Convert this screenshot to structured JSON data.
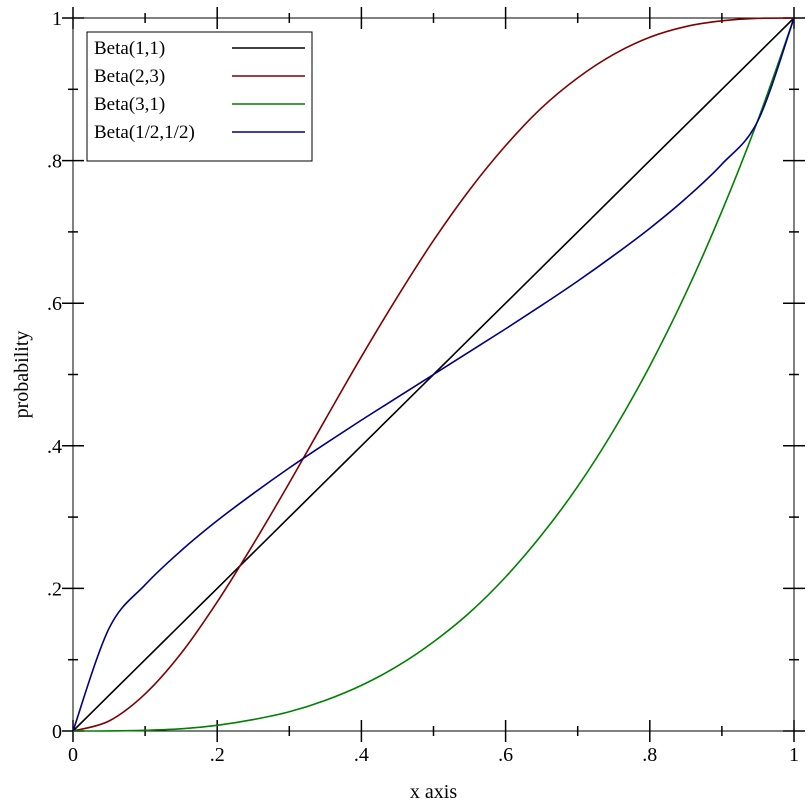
{
  "chart_data": {
    "type": "line",
    "title": "",
    "xlabel": "x axis",
    "ylabel": "probability",
    "xlim": [
      0,
      1
    ],
    "ylim": [
      0,
      1
    ],
    "x_ticks": [
      {
        "value": 0,
        "label": "0"
      },
      {
        "value": 0.2,
        "label": ".2"
      },
      {
        "value": 0.4,
        "label": ".4"
      },
      {
        "value": 0.6,
        "label": ".6"
      },
      {
        "value": 0.8,
        "label": ".8"
      },
      {
        "value": 1,
        "label": "1"
      }
    ],
    "y_ticks": [
      {
        "value": 0,
        "label": "0"
      },
      {
        "value": 0.2,
        "label": ".2"
      },
      {
        "value": 0.4,
        "label": ".4"
      },
      {
        "value": 0.6,
        "label": ".6"
      },
      {
        "value": 0.8,
        "label": ".8"
      },
      {
        "value": 1,
        "label": "1"
      }
    ],
    "minor_tick_step": 0.1,
    "grid": false,
    "legend_position": "top-left",
    "x": [
      0,
      0.05,
      0.1,
      0.15,
      0.2,
      0.25,
      0.3,
      0.35,
      0.4,
      0.45,
      0.5,
      0.55,
      0.6,
      0.65,
      0.7,
      0.75,
      0.8,
      0.85,
      0.9,
      0.95,
      1
    ],
    "series": [
      {
        "name": "Beta(1,1)",
        "color": "#000000",
        "values": [
          0,
          0.05,
          0.1,
          0.15,
          0.2,
          0.25,
          0.3,
          0.35,
          0.4,
          0.45,
          0.5,
          0.55,
          0.6,
          0.65,
          0.7,
          0.75,
          0.8,
          0.85,
          0.9,
          0.95,
          1
        ]
      },
      {
        "name": "Beta(2,3)",
        "color": "#800000",
        "values": [
          0,
          0.014,
          0.052,
          0.109,
          0.181,
          0.262,
          0.348,
          0.437,
          0.525,
          0.609,
          0.688,
          0.759,
          0.821,
          0.874,
          0.916,
          0.949,
          0.973,
          0.988,
          0.996,
          0.9995,
          1
        ]
      },
      {
        "name": "Beta(3,1)",
        "color": "#008000",
        "values": [
          0,
          0.0001,
          0.001,
          0.003,
          0.008,
          0.016,
          0.027,
          0.043,
          0.064,
          0.091,
          0.125,
          0.166,
          0.216,
          0.275,
          0.343,
          0.422,
          0.512,
          0.614,
          0.729,
          0.857,
          1
        ]
      },
      {
        "name": "Beta(1/2,1/2)",
        "color": "#000080",
        "values": [
          0,
          0.144,
          0.205,
          0.253,
          0.295,
          0.333,
          0.369,
          0.403,
          0.436,
          0.468,
          0.5,
          0.532,
          0.564,
          0.597,
          0.631,
          0.667,
          0.705,
          0.747,
          0.795,
          0.856,
          1
        ]
      }
    ]
  }
}
